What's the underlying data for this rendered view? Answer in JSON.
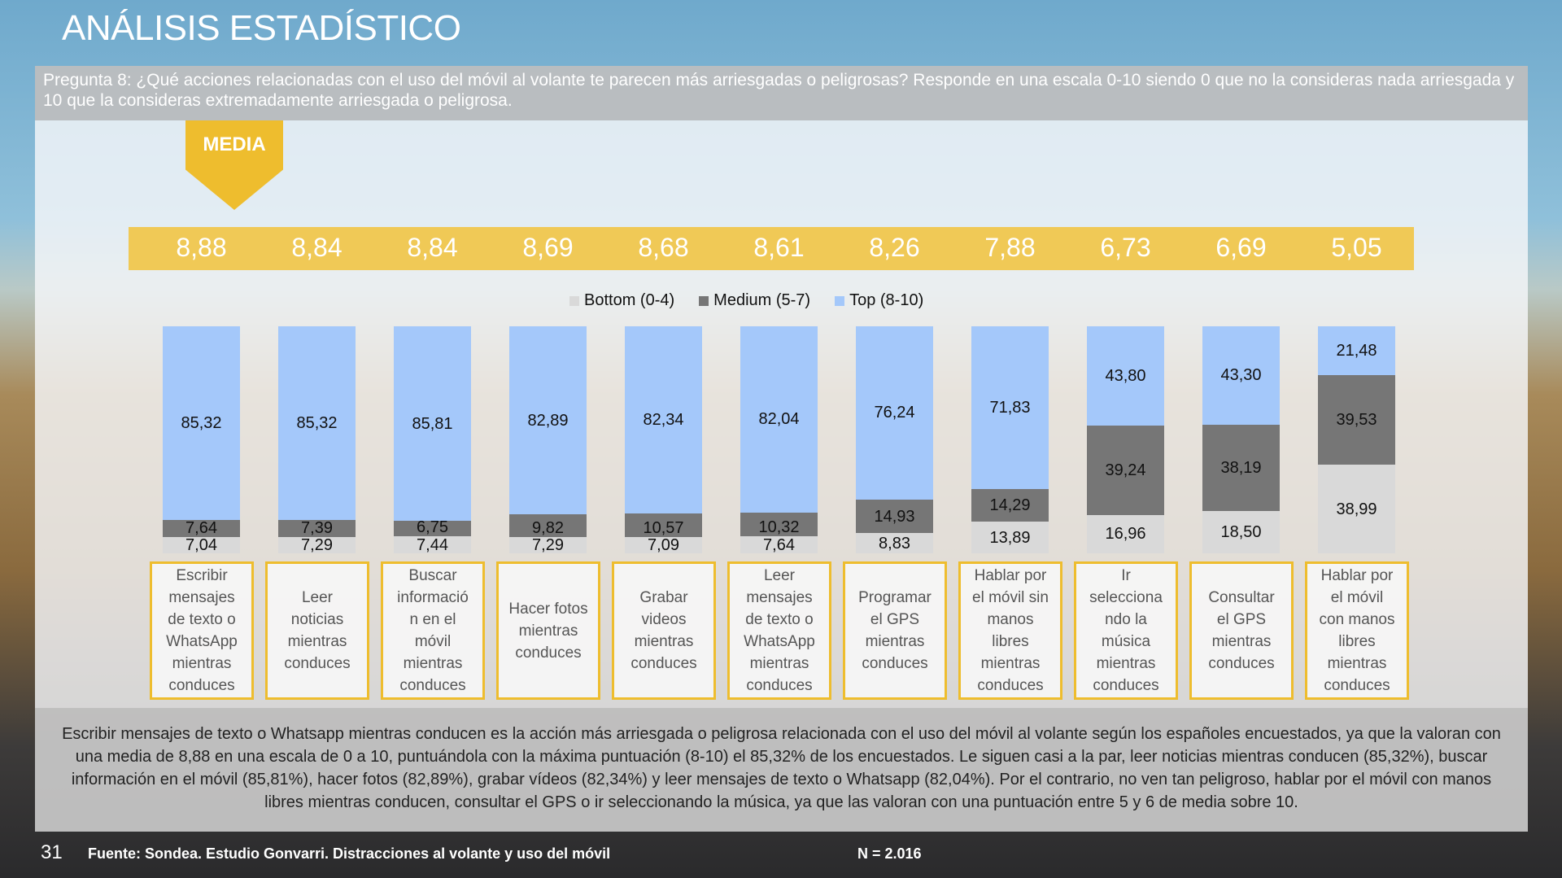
{
  "title": "ANÁLISIS ESTADÍSTICO",
  "question": "Pregunta 8:  ¿Qué acciones relacionadas con el uso del móvil al volante te parecen más arriesgadas o peligrosas? Responde en una escala 0-10 siendo 0 que no la consideras nada arriesgada y 10 que la consideras extremadamente arriesgada o peligrosa.",
  "media_label": "MEDIA",
  "summary": "Escribir mensajes de texto o Whatsapp mientras conducen es la acción más arriesgada o peligrosa relacionada con el uso del móvil al volante según los españoles encuestados, ya que la valoran con una media de 8,88 en una escala de 0 a 10, puntuándola con la máxima puntuación (8-10) el 85,32% de los encuestados. Le siguen casi a la par, leer noticias mientras conducen (85,32%), buscar información en el móvil (85,81%), hacer fotos (82,89%), grabar vídeos (82,34%) y leer mensajes de texto o Whatsapp (82,04%). Por el contrario, no ven tan peligroso, hablar por el móvil con manos libres mientras conducen, consultar el GPS o ir seleccionando la música, ya que las valoran con una puntuación entre 5 y 6 de media sobre 10.",
  "footer": {
    "page": "31",
    "source": "Fuente: Sondea. Estudio Gonvarri. Distracciones al volante y uso del móvil",
    "n": "N = 2.016"
  },
  "colors": {
    "bottom": "#d9d9d9",
    "medium": "#767676",
    "top": "#a4c8fa",
    "accent": "#eebd2e"
  },
  "chart_data": {
    "type": "bar",
    "stacked": true,
    "legend_position": "top",
    "categories": [
      "Escribir\nmensajes\nde texto o\nWhatsApp\nmientras\nconduces",
      "Leer\nnoticias\nmientras\nconduces",
      "Buscar\ninformació\nn en el\nmóvil\nmientras\nconduces",
      "Hacer fotos\nmientras\nconduces",
      "Grabar\nvideos\nmientras\nconduces",
      "Leer\nmensajes\nde texto o\nWhatsApp\nmientras\nconduces",
      "Programar\nel GPS\nmientras\nconduces",
      "Hablar por\nel móvil sin\nmanos\nlibres\nmientras\nconduces",
      "Ir\nselecciona\nndo la\nmúsica\nmientras\nconduces",
      "Consultar\nel GPS\nmientras\nconduces",
      "Hablar por\nel móvil\ncon manos\nlibres\nmientras\nconduces"
    ],
    "means": [
      "8,88",
      "8,84",
      "8,84",
      "8,69",
      "8,68",
      "8,61",
      "8,26",
      "7,88",
      "6,73",
      "6,69",
      "5,05"
    ],
    "series": [
      {
        "name": "Bottom (0-4)",
        "values": [
          7.04,
          7.29,
          7.44,
          7.29,
          7.09,
          7.64,
          8.83,
          13.89,
          16.96,
          18.5,
          38.99
        ]
      },
      {
        "name": "Medium (5-7)",
        "values": [
          7.64,
          7.39,
          6.75,
          9.82,
          10.57,
          10.32,
          14.93,
          14.29,
          39.24,
          38.19,
          39.53
        ]
      },
      {
        "name": "Top (8-10)",
        "values": [
          85.32,
          85.32,
          85.81,
          82.89,
          82.34,
          82.04,
          76.24,
          71.83,
          43.8,
          43.3,
          21.48
        ]
      }
    ],
    "ylim": [
      0,
      100
    ]
  }
}
